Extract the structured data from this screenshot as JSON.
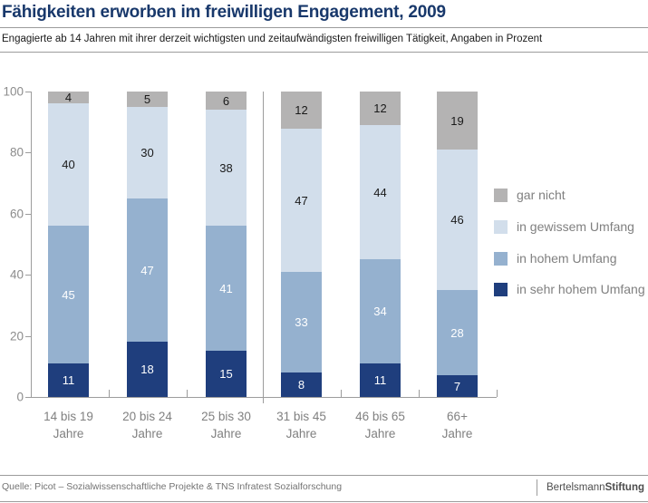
{
  "header": {
    "title": "Fähigkeiten erworben im freiwilligen Engagement, 2009",
    "subtitle": "Engagierte ab 14 Jahren mit ihrer derzeit wichtigsten und zeitaufwändigsten freiwilligen Tätigkeit, Angaben in Prozent"
  },
  "chart_data": {
    "type": "bar",
    "stacked": true,
    "title": "Fähigkeiten erworben im freiwilligen Engagement, 2009",
    "xlabel": "",
    "ylabel": "",
    "ylim": [
      0,
      100
    ],
    "y_ticks": [
      0,
      20,
      40,
      60,
      80,
      100
    ],
    "grid": false,
    "legend_position": "right",
    "categories": [
      [
        "14 bis 19",
        "Jahre"
      ],
      [
        "20 bis 24",
        "Jahre"
      ],
      [
        "25 bis 30",
        "Jahre"
      ],
      [
        "31 bis 45",
        "Jahre"
      ],
      [
        "46 bis 65",
        "Jahre"
      ],
      [
        "66+",
        "Jahre"
      ]
    ],
    "series": [
      {
        "name": "in sehr hohem Umfang",
        "color": "#1f3e7d",
        "label_color": "#ffffff",
        "values": [
          11,
          18,
          15,
          8,
          11,
          7
        ]
      },
      {
        "name": "in hohem Umfang",
        "color": "#95b1cf",
        "label_color": "#ffffff",
        "values": [
          45,
          47,
          41,
          33,
          34,
          28
        ]
      },
      {
        "name": "in gewissem Umfang",
        "color": "#d2deeb",
        "label_color": "#1a1a1a",
        "values": [
          40,
          30,
          38,
          47,
          44,
          46
        ]
      },
      {
        "name": "gar nicht",
        "color": "#b4b3b3",
        "label_color": "#1a1a1a",
        "values": [
          4,
          5,
          6,
          12,
          12,
          19
        ]
      }
    ],
    "legend": [
      {
        "label": "gar nicht",
        "color": "#b4b3b3"
      },
      {
        "label": "in gewissem Umfang",
        "color": "#d2deeb"
      },
      {
        "label": "in hohem Umfang",
        "color": "#95b1cf"
      },
      {
        "label": "in sehr hohem Umfang",
        "color": "#1f3e7d"
      }
    ],
    "separator_after_category_index": 2
  },
  "footer": {
    "source": "Quelle: Picot – Sozialwissenschaftliche Projekte & TNS Infratest Sozialforschung",
    "logo": {
      "part1": "Bertelsmann",
      "part2": "Stiftung"
    }
  }
}
